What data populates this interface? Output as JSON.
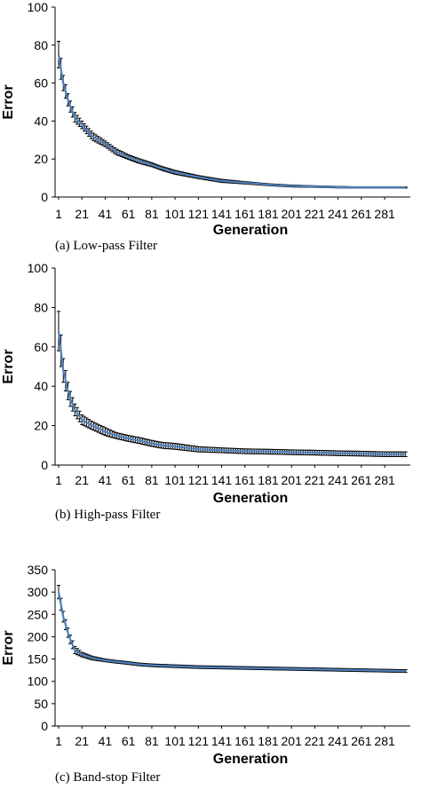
{
  "chart_data": [
    {
      "type": "line",
      "caption": "(a)  Low-pass Filter",
      "xlabel": "Generation",
      "ylabel": "Error",
      "ylim": [
        0,
        100
      ],
      "yticks": [
        "0",
        "20",
        "40",
        "60",
        "80",
        "100"
      ],
      "xticks": [
        "1",
        "21",
        "41",
        "61",
        "81",
        "101",
        "121",
        "141",
        "161",
        "181",
        "201",
        "221",
        "241",
        "261",
        "281"
      ],
      "xlim": [
        1,
        300
      ],
      "series": [
        {
          "x": [
            1,
            5,
            10,
            15,
            21,
            30,
            41,
            50,
            61,
            70,
            81,
            90,
            101,
            121,
            141,
            161,
            181,
            201,
            221,
            241,
            261,
            281,
            300
          ],
          "values": [
            75,
            60,
            49,
            42,
            38,
            32,
            28,
            24,
            21,
            19,
            17,
            15,
            13,
            10.5,
            8.5,
            7.5,
            6.5,
            5.8,
            5.5,
            5.2,
            5.0,
            5.0,
            5.0
          ],
          "error": [
            7,
            4,
            3,
            2.5,
            2,
            2,
            1.5,
            1.5,
            1.2,
            1.2,
            1,
            1,
            1,
            0.8,
            0.8,
            0.6,
            0.5,
            0.5,
            0.4,
            0.4,
            0.3,
            0.3,
            0.3
          ]
        }
      ]
    },
    {
      "type": "line",
      "caption": "(b)  High-pass Filter",
      "xlabel": "Generation",
      "ylabel": "Error",
      "ylim": [
        0,
        100
      ],
      "yticks": [
        "0",
        "20",
        "40",
        "60",
        "80",
        "100"
      ],
      "xticks": [
        "1",
        "21",
        "41",
        "61",
        "81",
        "101",
        "121",
        "141",
        "161",
        "181",
        "201",
        "221",
        "241",
        "261",
        "281"
      ],
      "xlim": [
        1,
        300
      ],
      "series": [
        {
          "x": [
            1,
            5,
            10,
            15,
            21,
            30,
            41,
            50,
            61,
            70,
            81,
            90,
            101,
            121,
            141,
            161,
            181,
            201,
            221,
            241,
            261,
            281,
            300
          ],
          "values": [
            68,
            48,
            35,
            28,
            23,
            20,
            17,
            15,
            13.5,
            12.5,
            11,
            10,
            9.5,
            8,
            7.5,
            7,
            6.8,
            6.5,
            6.3,
            6,
            5.8,
            5.5,
            5.5
          ],
          "error": [
            10,
            6,
            4,
            3,
            2.5,
            2,
            2,
            1.5,
            1.5,
            1.5,
            1.5,
            1.5,
            1.5,
            1.3,
            1.2,
            1.2,
            1.2,
            1.2,
            1.2,
            1.2,
            1.2,
            1.2,
            1.2
          ]
        }
      ]
    },
    {
      "type": "line",
      "caption": "(c)  Band-stop Filter",
      "xlabel": "Generation",
      "ylabel": "Error",
      "ylim": [
        0,
        350
      ],
      "yticks": [
        "0",
        "50",
        "100",
        "150",
        "200",
        "250",
        "300",
        "350"
      ],
      "xticks": [
        "1",
        "21",
        "41",
        "61",
        "81",
        "101",
        "121",
        "141",
        "161",
        "181",
        "201",
        "221",
        "241",
        "261",
        "281"
      ],
      "xlim": [
        1,
        300
      ],
      "series": [
        {
          "x": [
            1,
            5,
            10,
            15,
            21,
            30,
            41,
            50,
            61,
            70,
            81,
            90,
            101,
            121,
            141,
            161,
            181,
            201,
            221,
            241,
            261,
            281,
            300
          ],
          "values": [
            300,
            245,
            200,
            170,
            160,
            152,
            147,
            144,
            141,
            138,
            136,
            135,
            134,
            132,
            131,
            130,
            129,
            128,
            127,
            126,
            125,
            124,
            123
          ],
          "error": [
            15,
            12,
            10,
            8,
            5,
            4,
            3,
            3,
            3,
            3,
            3,
            3,
            3,
            3,
            3,
            3,
            3,
            3,
            3,
            3,
            3,
            3,
            3
          ]
        }
      ]
    }
  ],
  "colors": {
    "line": "#4f81bd",
    "errorbar": "#000000",
    "axis": "#000000"
  }
}
